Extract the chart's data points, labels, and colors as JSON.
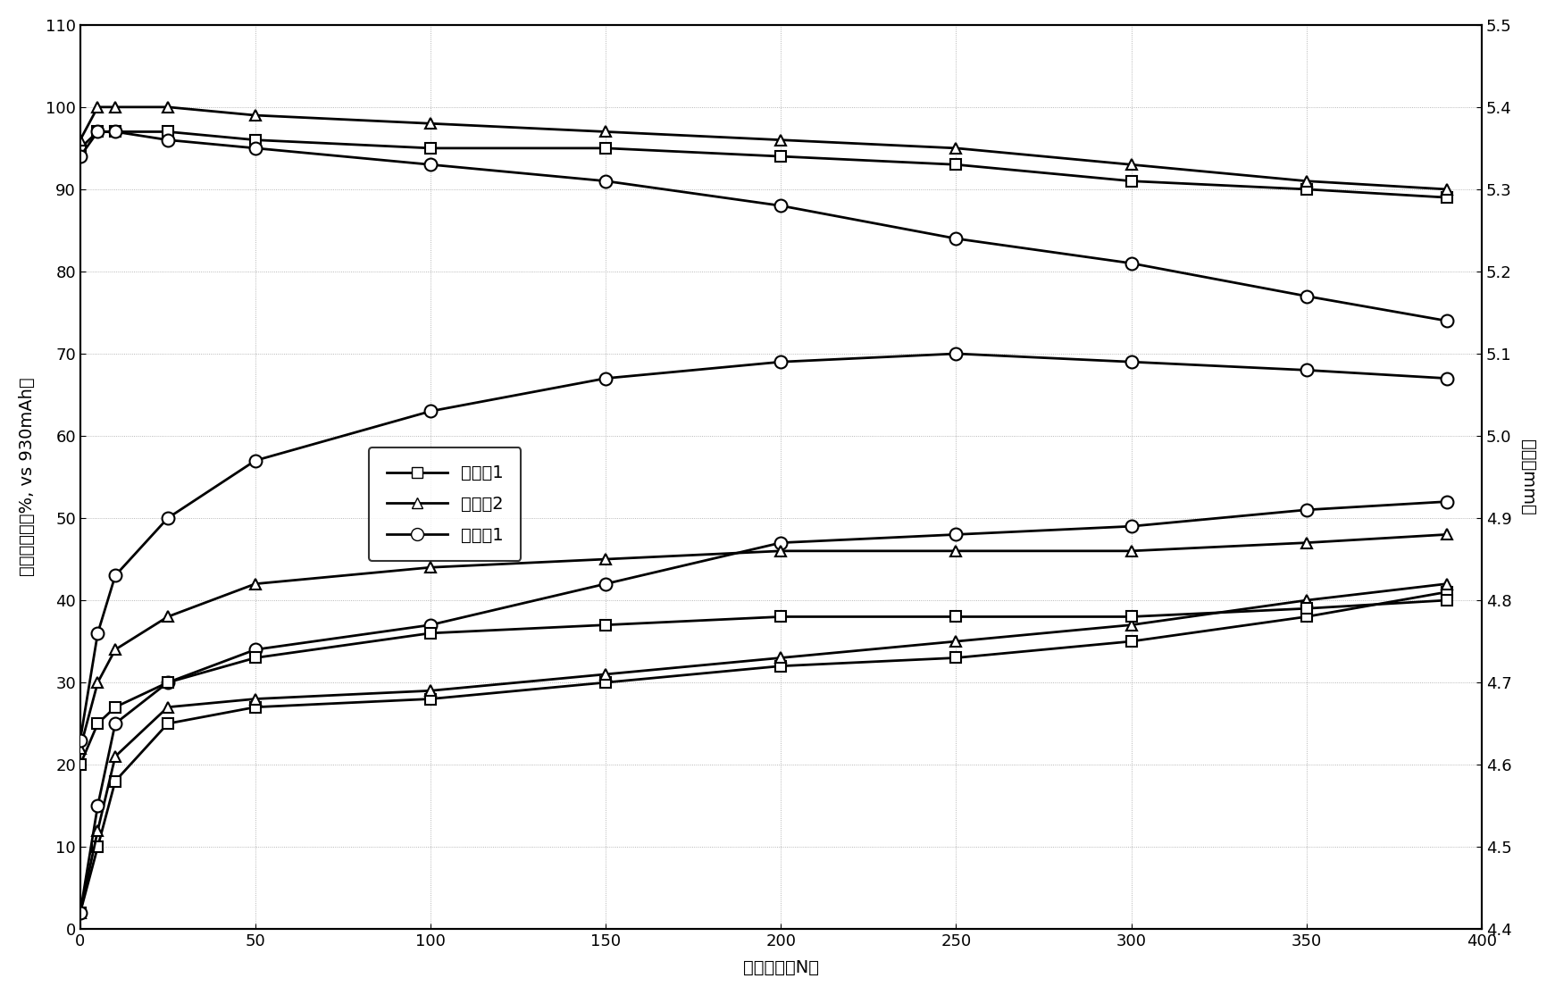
{
  "xlabel": "循环次数（N）",
  "ylabel_left": "容量维持比（%, vs 930mAh）",
  "ylabel_right": "厉度（mm）",
  "xlim": [
    0,
    400
  ],
  "ylim_left": [
    0,
    110
  ],
  "ylim_right": [
    4.4,
    5.5
  ],
  "xticks": [
    0,
    50,
    100,
    150,
    200,
    250,
    300,
    350,
    400
  ],
  "yticks_left": [
    0,
    10,
    20,
    30,
    40,
    50,
    60,
    70,
    80,
    90,
    100,
    110
  ],
  "yticks_right": [
    4.4,
    4.5,
    4.6,
    4.7,
    4.8,
    4.9,
    5.0,
    5.1,
    5.2,
    5.3,
    5.4,
    5.5
  ],
  "series1_label": "实施例1",
  "series2_label": "实施例2",
  "series3_label": "比较例1",
  "cap1_x": [
    0,
    5,
    10,
    25,
    50,
    100,
    150,
    200,
    250,
    300,
    350,
    390
  ],
  "cap1_y": [
    95,
    97,
    97,
    97,
    96,
    95,
    95,
    94,
    93,
    91,
    90,
    89
  ],
  "cap2_x": [
    0,
    5,
    10,
    25,
    50,
    100,
    150,
    200,
    250,
    300,
    350,
    390
  ],
  "cap2_y": [
    96,
    100,
    100,
    100,
    99,
    98,
    97,
    96,
    95,
    93,
    91,
    90
  ],
  "cap3_x": [
    0,
    5,
    10,
    25,
    50,
    100,
    150,
    200,
    250,
    300,
    350,
    390
  ],
  "cap3_y": [
    94,
    97,
    97,
    96,
    95,
    93,
    91,
    88,
    84,
    81,
    77,
    74
  ],
  "thk1_x": [
    0,
    5,
    10,
    25,
    50,
    100,
    150,
    200,
    250,
    300,
    350,
    390
  ],
  "thk1_y": [
    4.6,
    4.65,
    4.67,
    4.7,
    4.73,
    4.76,
    4.77,
    4.78,
    4.78,
    4.78,
    4.79,
    4.8
  ],
  "thk2_x": [
    0,
    5,
    10,
    25,
    50,
    100,
    150,
    200,
    250,
    300,
    350,
    390
  ],
  "thk2_y": [
    4.62,
    4.7,
    4.74,
    4.78,
    4.82,
    4.84,
    4.85,
    4.86,
    4.86,
    4.86,
    4.87,
    4.88
  ],
  "thk3_x": [
    0,
    5,
    10,
    25,
    50,
    100,
    150,
    200,
    250,
    300,
    350,
    390
  ],
  "thk3_y": [
    4.63,
    4.76,
    4.83,
    4.9,
    4.97,
    5.03,
    5.07,
    5.09,
    5.1,
    5.09,
    5.08,
    5.07
  ],
  "swell1_x": [
    0,
    5,
    10,
    25,
    50,
    100,
    150,
    200,
    250,
    300,
    350,
    390
  ],
  "swell1_y": [
    2,
    10,
    18,
    25,
    27,
    28,
    30,
    32,
    33,
    35,
    38,
    41
  ],
  "swell2_x": [
    0,
    5,
    10,
    25,
    50,
    100,
    150,
    200,
    250,
    300,
    350,
    390
  ],
  "swell2_y": [
    2,
    12,
    21,
    27,
    28,
    29,
    31,
    33,
    35,
    37,
    40,
    42
  ],
  "swell3_x": [
    0,
    5,
    10,
    25,
    50,
    100,
    150,
    200,
    250,
    300,
    350,
    390
  ],
  "swell3_y": [
    2,
    15,
    25,
    30,
    34,
    37,
    42,
    47,
    48,
    49,
    51,
    52
  ],
  "figwidth": 17.41,
  "figheight": 11.14,
  "dpi": 100
}
